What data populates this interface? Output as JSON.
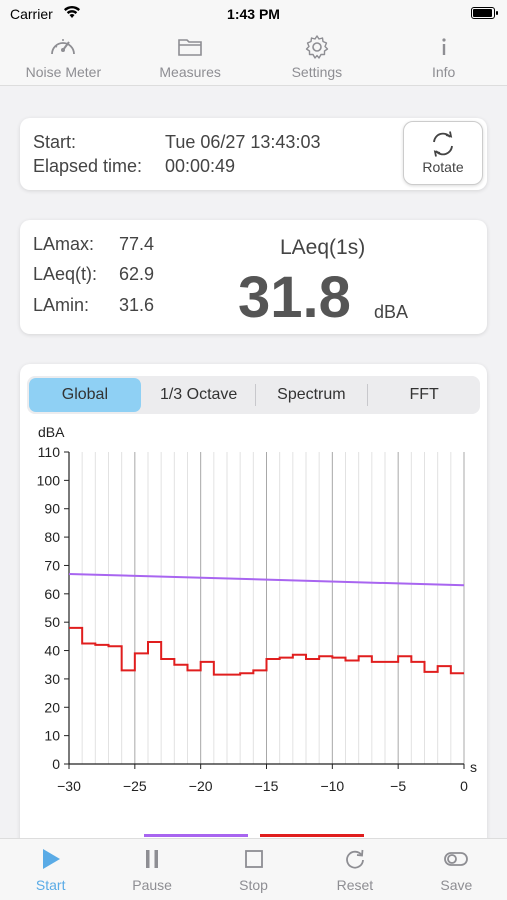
{
  "status": {
    "carrier": "Carrier",
    "time": "1:43 PM",
    "battery_level": 1.0
  },
  "top_tabs": [
    {
      "label": "Noise Meter",
      "icon": "gauge-icon",
      "active": true
    },
    {
      "label": "Measures",
      "icon": "folder-icon",
      "active": false
    },
    {
      "label": "Settings",
      "icon": "gear-icon",
      "active": false
    },
    {
      "label": "Info",
      "icon": "info-icon",
      "active": false
    }
  ],
  "session": {
    "start_label": "Start:",
    "start_value": "Tue 06/27 13:43:03",
    "elapsed_label": "Elapsed time:",
    "elapsed_value": "00:00:49",
    "rotate_label": "Rotate"
  },
  "levels": {
    "lamax_label": "LAmax:",
    "lamax_value": "77.4",
    "laeqt_label": "LAeq(t):",
    "laeqt_value": "62.9",
    "lamin_label": "LAmin:",
    "lamin_value": "31.6",
    "laeq_title": "LAeq(1s)",
    "laeq_value": "31.8",
    "laeq_unit": "dBA"
  },
  "segments": [
    {
      "label": "Global",
      "active": true
    },
    {
      "label": "1/3 Octave",
      "active": false
    },
    {
      "label": "Spectrum",
      "active": false
    },
    {
      "label": "FFT",
      "active": false
    }
  ],
  "chart_data": {
    "type": "line",
    "ylabel": "dBA",
    "xlabel": "s",
    "xlim": [
      -30,
      0
    ],
    "ylim": [
      0,
      110
    ],
    "x_ticks": [
      -30,
      -25,
      -20,
      -15,
      -10,
      -5,
      0
    ],
    "x_tick_labels": [
      "−30",
      "−25",
      "−20",
      "−15",
      "−10",
      "−5",
      "0"
    ],
    "y_ticks": [
      0,
      10,
      20,
      30,
      40,
      50,
      60,
      70,
      80,
      90,
      100,
      110
    ],
    "grid": true,
    "series": [
      {
        "color": "#a865f0",
        "style": "line",
        "x": [
          -30,
          0
        ],
        "y": [
          67,
          63
        ]
      },
      {
        "color": "#e01e1e",
        "style": "step",
        "x": [
          -30,
          -29,
          -28,
          -27,
          -26,
          -25,
          -24,
          -23,
          -22,
          -21,
          -20,
          -19,
          -18,
          -17,
          -16,
          -15,
          -14,
          -13,
          -12,
          -11,
          -10,
          -9,
          -8,
          -7,
          -6,
          -5,
          -4,
          -3,
          -2,
          -1,
          0
        ],
        "y": [
          48,
          42.5,
          42,
          41.5,
          33,
          39,
          43,
          37,
          35,
          33,
          36,
          31.5,
          31.5,
          32,
          33,
          37,
          37.5,
          38.5,
          37,
          38,
          37.5,
          36.5,
          38,
          36,
          36,
          38,
          36,
          32.5,
          34.5,
          32,
          32
        ]
      }
    ]
  },
  "bottom_bar": [
    {
      "label": "Start",
      "icon": "play-icon",
      "active": true
    },
    {
      "label": "Pause",
      "icon": "pause-icon",
      "active": false
    },
    {
      "label": "Stop",
      "icon": "stop-icon",
      "active": false
    },
    {
      "label": "Reset",
      "icon": "reset-icon",
      "active": false
    },
    {
      "label": "Save",
      "icon": "toggle-icon",
      "active": false
    }
  ]
}
